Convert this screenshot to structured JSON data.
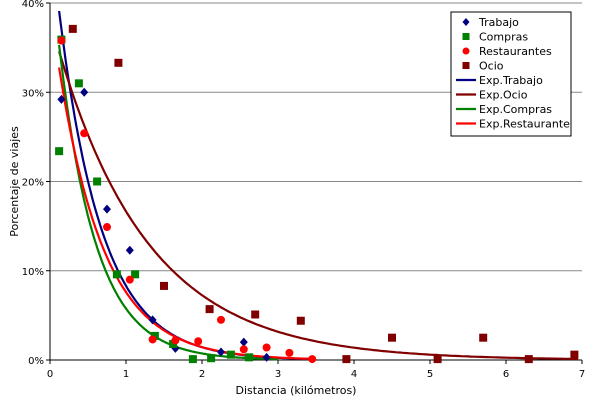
{
  "chart_data": {
    "type": "scatter",
    "xlabel": "Distancia (kilómetros)",
    "ylabel": "Porcentaje de viajes",
    "xlim": [
      0,
      7
    ],
    "ylim": [
      0,
      40
    ],
    "x_ticks": [
      "0",
      "1",
      "2",
      "3",
      "4",
      "5",
      "6",
      "7"
    ],
    "y_ticks": [
      "0%",
      "10%",
      "20%",
      "30%",
      "40%"
    ],
    "grid": "horizontal",
    "legend_position": "top-right",
    "series": [
      {
        "name": "Trabajo",
        "marker": "diamond",
        "color": "#000080",
        "points": [
          [
            0.15,
            29.2
          ],
          [
            0.45,
            30
          ],
          [
            0.75,
            16.9
          ],
          [
            1.05,
            12.3
          ],
          [
            1.35,
            4.5
          ],
          [
            1.65,
            1.3
          ],
          [
            2.25,
            0.9
          ],
          [
            2.55,
            2.0
          ],
          [
            2.85,
            0.3
          ]
        ]
      },
      {
        "name": "Compras",
        "marker": "square",
        "color": "#008000",
        "points": [
          [
            0.12,
            23.4
          ],
          [
            0.15,
            35.9
          ],
          [
            0.38,
            31
          ],
          [
            0.62,
            20
          ],
          [
            0.88,
            9.6
          ],
          [
            1.12,
            9.6
          ],
          [
            1.38,
            2.7
          ],
          [
            1.62,
            1.8
          ],
          [
            1.88,
            0.1
          ],
          [
            2.12,
            0.2
          ],
          [
            2.38,
            0.6
          ],
          [
            2.62,
            0.3
          ]
        ]
      },
      {
        "name": "Restaurantes",
        "marker": "circle",
        "color": "#ff0000",
        "points": [
          [
            0.15,
            35.8
          ],
          [
            0.45,
            25.4
          ],
          [
            0.75,
            14.9
          ],
          [
            1.05,
            9.0
          ],
          [
            1.35,
            2.3
          ],
          [
            1.65,
            2.2
          ],
          [
            1.95,
            2.1
          ],
          [
            2.25,
            4.5
          ],
          [
            2.55,
            1.2
          ],
          [
            2.85,
            1.4
          ],
          [
            3.15,
            0.8
          ],
          [
            3.45,
            0.1
          ]
        ]
      },
      {
        "name": "Ocio",
        "marker": "square",
        "color": "#800000",
        "points": [
          [
            0.3,
            37.1
          ],
          [
            0.9,
            33.3
          ],
          [
            1.5,
            8.3
          ],
          [
            2.1,
            5.7
          ],
          [
            2.7,
            5.1
          ],
          [
            3.3,
            4.4
          ],
          [
            3.9,
            0.1
          ],
          [
            4.5,
            2.5
          ],
          [
            5.1,
            0.1
          ],
          [
            5.7,
            2.5
          ],
          [
            6.3,
            0.1
          ],
          [
            6.9,
            0.6
          ]
        ]
      }
    ],
    "trendlines": [
      {
        "name": "Exp.Trabajo",
        "color": "#000080",
        "a": 48.3,
        "b": 1.76,
        "x_range": [
          0.12,
          3.45
        ]
      },
      {
        "name": "Exp.Ocio",
        "color": "#800000",
        "a": 38.2,
        "b": 0.83,
        "x_range": [
          0.12,
          6.95
        ]
      },
      {
        "name": "Exp.Compras",
        "color": "#008000",
        "a": 45.2,
        "b": 2.06,
        "x_range": [
          0.12,
          3.0
        ]
      },
      {
        "name": "Exp.Restaurante",
        "color": "#ff0000",
        "a": 40.0,
        "b": 1.66,
        "x_range": [
          0.12,
          3.45
        ]
      }
    ]
  }
}
